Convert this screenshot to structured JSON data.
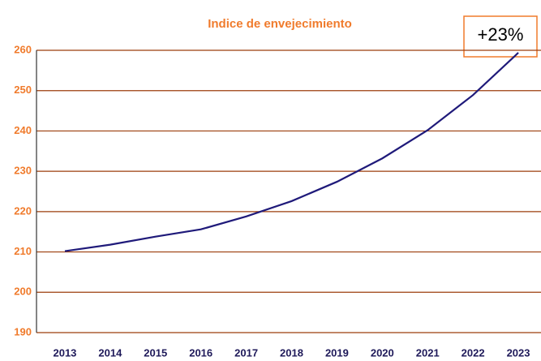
{
  "chart_data": {
    "type": "line",
    "title": "Indice de envejecimiento",
    "annotation": "+23%",
    "categories": [
      "2013",
      "2014",
      "2015",
      "2016",
      "2017",
      "2018",
      "2019",
      "2020",
      "2021",
      "2022",
      "2023"
    ],
    "values": [
      210.2,
      211.8,
      213.8,
      215.6,
      218.8,
      222.6,
      227.4,
      233.2,
      240.2,
      248.9,
      259.4
    ],
    "color": "#1f1a7a",
    "ylim": [
      190,
      260
    ],
    "yticks": [
      190,
      200,
      210,
      220,
      230,
      240,
      250,
      260
    ],
    "grid": true
  }
}
